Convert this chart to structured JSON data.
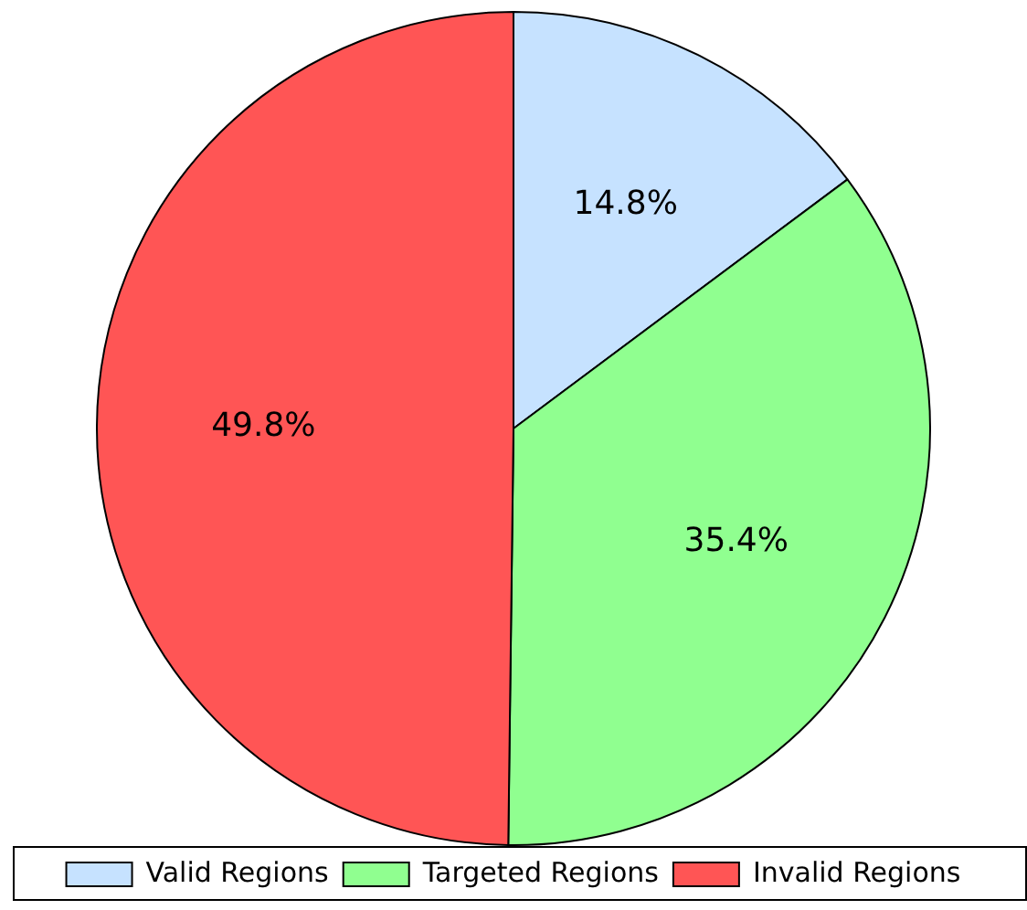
{
  "chart_data": {
    "type": "pie",
    "categories": [
      "Valid Regions",
      "Targeted Regions",
      "Invalid Regions"
    ],
    "values": [
      14.8,
      35.4,
      49.8
    ],
    "colors": [
      "#c6e2ff",
      "#90ff90",
      "#ff5555"
    ],
    "value_labels": [
      "14.8%",
      "35.4%",
      "49.8%"
    ],
    "legend": "bottom"
  }
}
